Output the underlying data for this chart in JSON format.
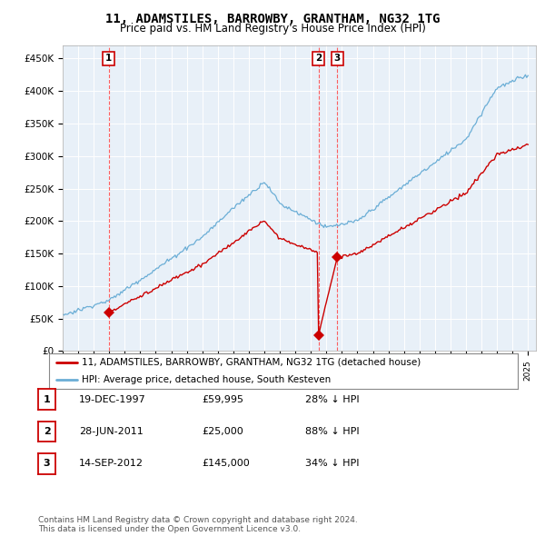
{
  "title": "11, ADAMSTILES, BARROWBY, GRANTHAM, NG32 1TG",
  "subtitle": "Price paid vs. HM Land Registry's House Price Index (HPI)",
  "ylim": [
    0,
    470000
  ],
  "yticks": [
    0,
    50000,
    100000,
    150000,
    200000,
    250000,
    300000,
    350000,
    400000,
    450000
  ],
  "ytick_labels": [
    "£0",
    "£50K",
    "£100K",
    "£150K",
    "£200K",
    "£250K",
    "£300K",
    "£350K",
    "£400K",
    "£450K"
  ],
  "xlim": [
    1995,
    2025.5
  ],
  "sale_dates_num": [
    1997.97,
    2011.49,
    2012.71
  ],
  "sale_prices": [
    59995,
    25000,
    145000
  ],
  "sale_labels": [
    "1",
    "2",
    "3"
  ],
  "hpi_color": "#6baed6",
  "sale_color": "#cc0000",
  "vline_color": "#ff4444",
  "legend_label_sale": "11, ADAMSTILES, BARROWBY, GRANTHAM, NG32 1TG (detached house)",
  "legend_label_hpi": "HPI: Average price, detached house, South Kesteven",
  "table_entries": [
    {
      "label": "1",
      "date": "19-DEC-1997",
      "price": "£59,995",
      "pct": "28% ↓ HPI"
    },
    {
      "label": "2",
      "date": "28-JUN-2011",
      "price": "£25,000",
      "pct": "88% ↓ HPI"
    },
    {
      "label": "3",
      "date": "14-SEP-2012",
      "price": "£145,000",
      "pct": "34% ↓ HPI"
    }
  ],
  "footer": "Contains HM Land Registry data © Crown copyright and database right 2024.\nThis data is licensed under the Open Government Licence v3.0.",
  "bg_color": "#ffffff",
  "plot_bg_color": "#e8f0f8",
  "grid_color": "#ffffff"
}
